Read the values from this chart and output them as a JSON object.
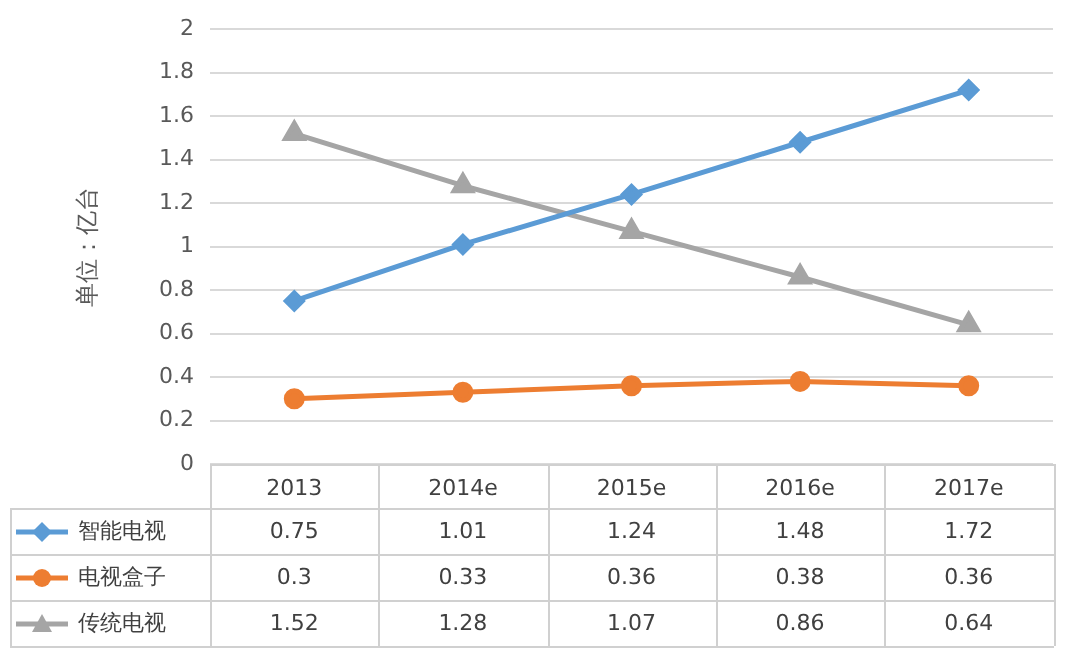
{
  "chart_data": {
    "type": "line",
    "ylabel": "单位：亿台",
    "categories": [
      "2013",
      "2014e",
      "2015e",
      "2016e",
      "2017e"
    ],
    "ylim": [
      0,
      2
    ],
    "yticks": [
      0,
      0.2,
      0.4,
      0.6,
      0.8,
      1,
      1.2,
      1.4,
      1.6,
      1.8,
      2
    ],
    "grid": "y",
    "legend": "bottom",
    "data_labels": true,
    "line_style": "solid",
    "series": [
      {
        "name": "智能电视",
        "color": "#5b9bd5",
        "marker": "diamond",
        "values": [
          0.75,
          1.01,
          1.24,
          1.48,
          1.72
        ]
      },
      {
        "name": "电视盒子",
        "color": "#ed7d31",
        "marker": "circle",
        "values": [
          0.3,
          0.33,
          0.36,
          0.38,
          0.36
        ]
      },
      {
        "name": "传统电视",
        "color": "#a5a5a5",
        "marker": "triangle",
        "values": [
          1.52,
          1.28,
          1.07,
          0.86,
          0.64
        ]
      }
    ]
  }
}
